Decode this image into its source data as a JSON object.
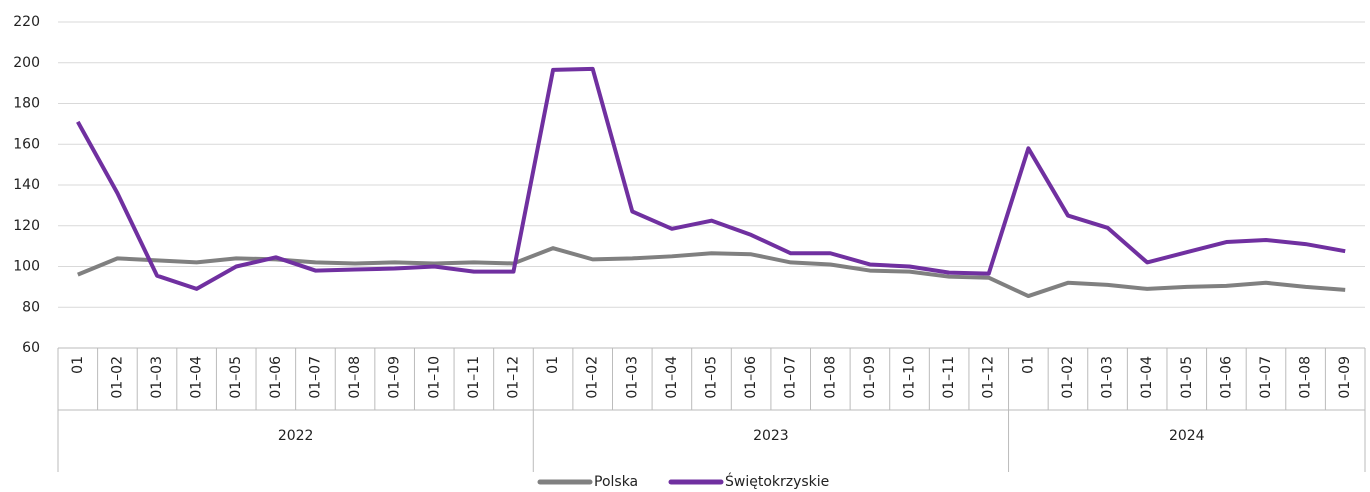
{
  "chart_data": {
    "type": "line",
    "groups": [
      {
        "name": "2022",
        "categories": [
          "01",
          "01–02",
          "01–03",
          "01–04",
          "01–05",
          "01–06",
          "01–07",
          "01–08",
          "01–09",
          "01–10",
          "01–11",
          "01–12"
        ]
      },
      {
        "name": "2023",
        "categories": [
          "01",
          "01–02",
          "01–03",
          "01–04",
          "01–05",
          "01–06",
          "01–07",
          "01–08",
          "01–09",
          "01–10",
          "01–11",
          "01–12"
        ]
      },
      {
        "name": "2024",
        "categories": [
          "01",
          "01–02",
          "01–03",
          "01–04",
          "01–05",
          "01–06",
          "01–07",
          "01–08",
          "01–09"
        ]
      }
    ],
    "series": [
      {
        "name": "Polska",
        "color": "#808080",
        "values": [
          96,
          104,
          103,
          102,
          104,
          103.5,
          102,
          101.5,
          102,
          101.5,
          102,
          101.5,
          109,
          103.5,
          104,
          105,
          106.5,
          106,
          102,
          101,
          98,
          97.5,
          95,
          94.5,
          85.5,
          92,
          91,
          89,
          90,
          90.5,
          92,
          90,
          88.5
        ]
      },
      {
        "name": "Świętokrzyskie",
        "color": "#7030a0",
        "values": [
          171,
          136,
          95.5,
          89,
          100,
          104.5,
          98,
          98.5,
          99,
          100,
          97.5,
          97.5,
          196.5,
          197,
          127,
          118.5,
          122.5,
          115.5,
          106.5,
          106.5,
          101,
          100,
          97,
          96.5,
          158,
          125,
          119,
          102,
          107,
          112,
          113,
          111,
          107.5
        ]
      }
    ],
    "ylim": [
      60,
      220
    ],
    "yticks": [
      60,
      80,
      100,
      120,
      140,
      160,
      180,
      200,
      220
    ],
    "grid": true,
    "legend": "bottom"
  }
}
